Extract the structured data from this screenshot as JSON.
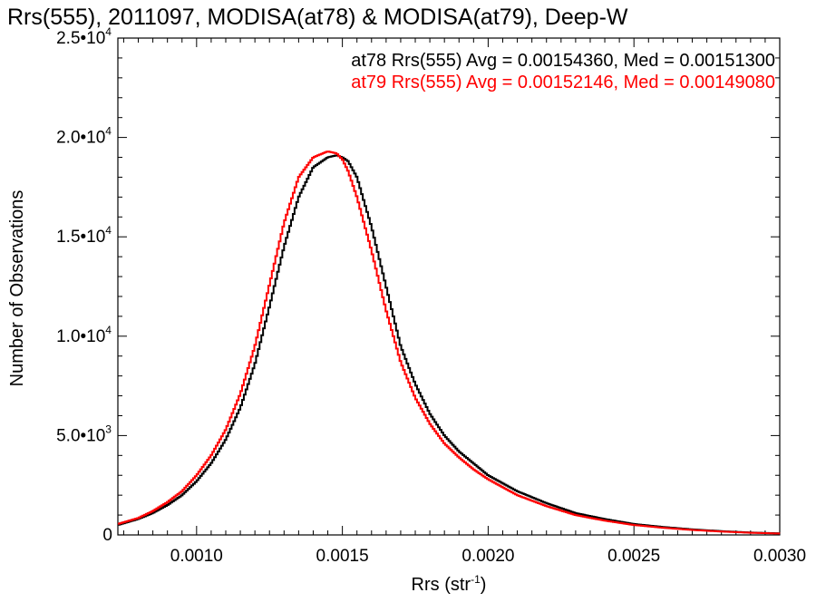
{
  "chart_data": {
    "type": "line",
    "title": "Rrs(555), 2011097, MODISA(at78) & MODISA(at79), Deep-W",
    "xlabel": "Rrs (str",
    "xlabel_sup": "-1",
    "xlabel_close": ")",
    "ylabel": "Number of Observations",
    "xlim": [
      0.00073,
      0.003
    ],
    "ylim": [
      0,
      25000
    ],
    "grid": false,
    "x_ticks": [
      {
        "value": 0.001,
        "label": "0.0010"
      },
      {
        "value": 0.0015,
        "label": "0.0015"
      },
      {
        "value": 0.002,
        "label": "0.0020"
      },
      {
        "value": 0.0025,
        "label": "0.0025"
      },
      {
        "value": 0.003,
        "label": "0.0030"
      }
    ],
    "y_ticks": [
      {
        "value": 0,
        "label": "0",
        "sup": ""
      },
      {
        "value": 5000,
        "label": "5.0•10",
        "sup": "3"
      },
      {
        "value": 10000,
        "label": "1.0•10",
        "sup": "4"
      },
      {
        "value": 15000,
        "label": "1.5•10",
        "sup": "4"
      },
      {
        "value": 20000,
        "label": "2.0•10",
        "sup": "4"
      },
      {
        "value": 25000,
        "label": "2.5•10",
        "sup": "4"
      }
    ],
    "legend_placement": "top-right",
    "series": [
      {
        "name": "at78",
        "legend": "at78 Rrs(555) Avg = 0.00154360, Med = 0.00151300",
        "color": "#000000",
        "x": [
          0.00073,
          0.0008,
          0.00085,
          0.0009,
          0.00095,
          0.001,
          0.00105,
          0.0011,
          0.00115,
          0.0012,
          0.00125,
          0.0013,
          0.00135,
          0.0014,
          0.00145,
          0.00148,
          0.0015,
          0.00152,
          0.00155,
          0.0016,
          0.00165,
          0.0017,
          0.00175,
          0.0018,
          0.00185,
          0.0019,
          0.00195,
          0.002,
          0.0021,
          0.0022,
          0.0023,
          0.0024,
          0.0025,
          0.0026,
          0.0027,
          0.0028,
          0.0029,
          0.003
        ],
        "y": [
          500,
          800,
          1100,
          1500,
          2000,
          2700,
          3600,
          4800,
          6400,
          8600,
          11500,
          14500,
          17000,
          18500,
          19000,
          19100,
          19000,
          18800,
          18000,
          15500,
          12500,
          9500,
          7600,
          6100,
          5000,
          4200,
          3600,
          3000,
          2200,
          1600,
          1100,
          800,
          550,
          400,
          280,
          190,
          120,
          80
        ]
      },
      {
        "name": "at79",
        "legend": "at79 Rrs(555) Avg = 0.00152146, Med = 0.00149080",
        "color": "#ff0000",
        "x": [
          0.00073,
          0.0008,
          0.00085,
          0.0009,
          0.00095,
          0.001,
          0.00105,
          0.0011,
          0.00115,
          0.0012,
          0.00125,
          0.0013,
          0.00135,
          0.0014,
          0.00145,
          0.00148,
          0.0015,
          0.00152,
          0.00155,
          0.0016,
          0.00165,
          0.0017,
          0.00175,
          0.0018,
          0.00185,
          0.0019,
          0.00195,
          0.002,
          0.0021,
          0.0022,
          0.0023,
          0.0024,
          0.0025,
          0.0026,
          0.0027,
          0.0028,
          0.0029,
          0.003
        ],
        "y": [
          550,
          850,
          1200,
          1650,
          2200,
          3000,
          4000,
          5300,
          7100,
          9500,
          12600,
          15700,
          18000,
          19000,
          19300,
          19200,
          18900,
          18300,
          17000,
          14300,
          11300,
          8700,
          6900,
          5600,
          4600,
          3900,
          3300,
          2800,
          2000,
          1450,
          1000,
          720,
          500,
          360,
          250,
          170,
          110,
          70
        ]
      }
    ]
  }
}
